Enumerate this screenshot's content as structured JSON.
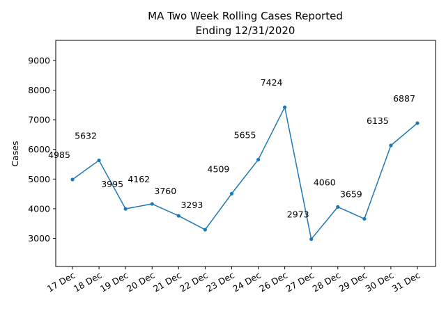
{
  "chart_data": {
    "type": "line",
    "title": [
      "MA Two Week Rolling Cases Reported",
      "Ending 12/31/2020"
    ],
    "xlabel": "",
    "ylabel": "Cases",
    "categories": [
      "17 Dec",
      "18 Dec",
      "19 Dec",
      "20 Dec",
      "21 Dec",
      "22 Dec",
      "23 Dec",
      "24 Dec",
      "26 Dec",
      "27 Dec",
      "28 Dec",
      "29 Dec",
      "30 Dec",
      "31 Dec"
    ],
    "series": [
      {
        "values": [
          4985,
          5632,
          3995,
          4162,
          3760,
          3293,
          4509,
          5655,
          7424,
          2973,
          4060,
          3659,
          6135,
          6887
        ],
        "color": "#1f77b4"
      }
    ],
    "data_labels": [
      "4985",
      "5632",
      "3995",
      "4162",
      "3760",
      "3293",
      "4509",
      "5655",
      "7424",
      "2973",
      "4060",
      "3659",
      "6135",
      "6887"
    ],
    "yticks": [
      3000,
      4000,
      5000,
      6000,
      7000,
      8000,
      9000
    ],
    "ylim": [
      2050,
      9680
    ],
    "grid": false,
    "legend": "none"
  }
}
